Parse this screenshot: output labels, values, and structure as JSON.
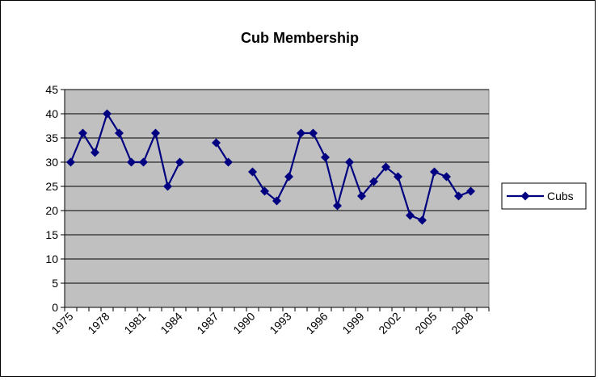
{
  "chart_data": {
    "type": "line",
    "title": "Cub Membership",
    "xlabel": "",
    "ylabel": "",
    "ylim": [
      0,
      45
    ],
    "yticks": [
      0,
      5,
      10,
      15,
      20,
      25,
      30,
      35,
      40,
      45
    ],
    "grid": true,
    "legend_position": "right",
    "x_tick_labels": [
      "1975",
      "1978",
      "1981",
      "1984",
      "1987",
      "1990",
      "1993",
      "1996",
      "1999",
      "2002",
      "2005",
      "2008"
    ],
    "categories": [
      "1975",
      "1976",
      "1977",
      "1978",
      "1979",
      "1980",
      "1981",
      "1982",
      "1983",
      "1984",
      "1985",
      "1986",
      "1987",
      "1988",
      "1989",
      "1990",
      "1991",
      "1992",
      "1993",
      "1994",
      "1995",
      "1996",
      "1997",
      "1998",
      "1999",
      "2000",
      "2001",
      "2002",
      "2003",
      "2004",
      "2005",
      "2006",
      "2007",
      "2008",
      "2009"
    ],
    "series": [
      {
        "name": "Cubs",
        "color": "#000080",
        "marker": "diamond",
        "values": [
          30,
          36,
          32,
          40,
          36,
          30,
          30,
          36,
          25,
          30,
          null,
          null,
          34,
          30,
          null,
          28,
          24,
          22,
          27,
          36,
          36,
          31,
          21,
          30,
          23,
          26,
          29,
          27,
          19,
          18,
          28,
          27,
          23,
          24,
          null
        ]
      }
    ],
    "colors": {
      "plot_background": "#c0c0c0",
      "gridline": "#000000",
      "series": "#000080"
    }
  }
}
